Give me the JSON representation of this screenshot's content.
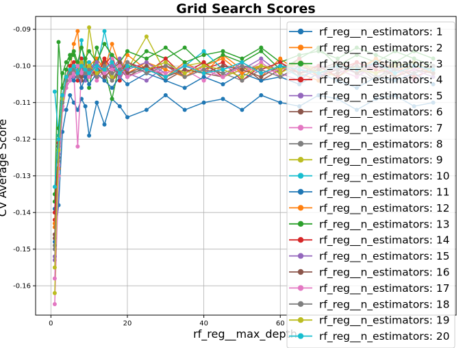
{
  "chart_data": {
    "type": "line",
    "title": "Grid Search Scores",
    "xlabel": "rf_reg__max_depth",
    "ylabel": "CV Average Score",
    "xlim": [
      -4,
      106
    ],
    "ylim": [
      -0.168,
      -0.0865
    ],
    "x_ticks": [
      0,
      20,
      40,
      60
    ],
    "y_ticks": [
      -0.16,
      -0.15,
      -0.14,
      -0.13,
      -0.12,
      -0.11,
      -0.1,
      -0.09
    ],
    "y_tick_labels": [
      "-0.16",
      "-0.15",
      "-0.14",
      "-0.13",
      "-0.12",
      "-0.11",
      "-0.10",
      "-0.09"
    ],
    "grid": true,
    "legend_position": "right",
    "x": [
      1,
      2,
      3,
      4,
      5,
      6,
      7,
      8,
      9,
      10,
      12,
      14,
      16,
      18,
      20,
      25,
      30,
      35,
      40,
      45,
      50,
      55,
      60,
      65,
      70,
      75,
      80,
      85,
      90,
      95,
      100
    ],
    "series": [
      {
        "name": "rf_reg__n_estimators: 1",
        "color": "#1f77b4",
        "values": [
          -0.148,
          -0.138,
          -0.118,
          -0.112,
          -0.108,
          -0.11,
          -0.112,
          -0.109,
          -0.111,
          -0.119,
          -0.11,
          -0.116,
          -0.109,
          -0.111,
          -0.114,
          -0.112,
          -0.108,
          -0.112,
          -0.11,
          -0.109,
          -0.112,
          -0.108,
          -0.11,
          -0.111,
          -0.108,
          -0.109,
          -0.112,
          -0.109,
          -0.108,
          -0.111,
          -0.11
        ]
      },
      {
        "name": "rf_reg__n_estimators: 2",
        "color": "#ff7f0e",
        "values": [
          -0.144,
          -0.128,
          -0.112,
          -0.104,
          -0.101,
          -0.094,
          -0.0905,
          -0.102,
          -0.098,
          -0.103,
          -0.101,
          -0.098,
          -0.104,
          -0.102,
          -0.097,
          -0.101,
          -0.103,
          -0.099,
          -0.102,
          -0.097,
          -0.101,
          -0.103,
          -0.098,
          -0.102,
          -0.104,
          -0.099,
          -0.101,
          -0.098,
          -0.103,
          -0.1,
          -0.102
        ]
      },
      {
        "name": "rf_reg__n_estimators: 3",
        "color": "#2ca02c",
        "values": [
          -0.137,
          -0.0935,
          -0.106,
          -0.101,
          -0.098,
          -0.097,
          -0.1,
          -0.104,
          -0.099,
          -0.106,
          -0.095,
          -0.101,
          -0.109,
          -0.099,
          -0.101,
          -0.096,
          -0.098,
          -0.095,
          -0.1,
          -0.097,
          -0.099,
          -0.096,
          -0.101,
          -0.098,
          -0.095,
          -0.1,
          -0.097,
          -0.099,
          -0.096,
          -0.098,
          -0.1
        ]
      },
      {
        "name": "rf_reg__n_estimators: 4",
        "color": "#d62728",
        "values": [
          -0.142,
          -0.121,
          -0.11,
          -0.103,
          -0.1,
          -0.099,
          -0.104,
          -0.098,
          -0.102,
          -0.099,
          -0.103,
          -0.1,
          -0.097,
          -0.104,
          -0.099,
          -0.102,
          -0.098,
          -0.103,
          -0.101,
          -0.099,
          -0.104,
          -0.1,
          -0.102,
          -0.098,
          -0.103,
          -0.101,
          -0.099,
          -0.102,
          -0.1,
          -0.103,
          -0.101
        ]
      },
      {
        "name": "rf_reg__n_estimators: 5",
        "color": "#9467bd",
        "values": [
          -0.153,
          -0.125,
          -0.109,
          -0.104,
          -0.102,
          -0.103,
          -0.1,
          -0.101,
          -0.104,
          -0.102,
          -0.099,
          -0.103,
          -0.101,
          -0.098,
          -0.102,
          -0.104,
          -0.1,
          -0.102,
          -0.099,
          -0.103,
          -0.101,
          -0.098,
          -0.102,
          -0.104,
          -0.1,
          -0.101,
          -0.103,
          -0.099,
          -0.102,
          -0.101,
          -0.103
        ]
      },
      {
        "name": "rf_reg__n_estimators: 6",
        "color": "#8c564b",
        "values": [
          -0.146,
          -0.122,
          -0.108,
          -0.105,
          -0.103,
          -0.102,
          -0.101,
          -0.104,
          -0.1,
          -0.103,
          -0.102,
          -0.099,
          -0.104,
          -0.101,
          -0.103,
          -0.1,
          -0.104,
          -0.101,
          -0.102,
          -0.103,
          -0.1,
          -0.104,
          -0.101,
          -0.099,
          -0.103,
          -0.102,
          -0.1,
          -0.104,
          -0.101,
          -0.102,
          -0.1
        ]
      },
      {
        "name": "rf_reg__n_estimators: 7",
        "color": "#e377c2",
        "values": [
          -0.165,
          -0.13,
          -0.112,
          -0.106,
          -0.104,
          -0.102,
          -0.122,
          -0.101,
          -0.103,
          -0.1,
          -0.104,
          -0.101,
          -0.098,
          -0.103,
          -0.101,
          -0.099,
          -0.103,
          -0.101,
          -0.104,
          -0.1,
          -0.102,
          -0.099,
          -0.103,
          -0.101,
          -0.1,
          -0.103,
          -0.099,
          -0.102,
          -0.101,
          -0.104,
          -0.1
        ]
      },
      {
        "name": "rf_reg__n_estimators: 8",
        "color": "#7f7f7f",
        "values": [
          -0.15,
          -0.126,
          -0.111,
          -0.105,
          -0.103,
          -0.101,
          -0.102,
          -0.1,
          -0.103,
          -0.101,
          -0.099,
          -0.102,
          -0.104,
          -0.1,
          -0.102,
          -0.101,
          -0.099,
          -0.103,
          -0.1,
          -0.102,
          -0.104,
          -0.101,
          -0.099,
          -0.103,
          -0.101,
          -0.1,
          -0.102,
          -0.104,
          -0.099,
          -0.101,
          -0.102
        ]
      },
      {
        "name": "rf_reg__n_estimators: 9",
        "color": "#bcbd22",
        "values": [
          -0.162,
          -0.124,
          -0.11,
          -0.103,
          -0.101,
          -0.102,
          -0.1,
          -0.099,
          -0.101,
          -0.0895,
          -0.102,
          -0.1,
          -0.103,
          -0.099,
          -0.101,
          -0.092,
          -0.102,
          -0.1,
          -0.099,
          -0.103,
          -0.101,
          -0.1,
          -0.102,
          -0.099,
          -0.101,
          -0.103,
          -0.1,
          -0.102,
          -0.099,
          -0.101,
          -0.1
        ]
      },
      {
        "name": "rf_reg__n_estimators: 10",
        "color": "#17becf",
        "values": [
          -0.107,
          -0.119,
          -0.109,
          -0.104,
          -0.102,
          -0.1,
          -0.101,
          -0.093,
          -0.102,
          -0.099,
          -0.101,
          -0.0905,
          -0.1,
          -0.102,
          -0.099,
          -0.101,
          -0.103,
          -0.1,
          -0.096,
          -0.101,
          -0.099,
          -0.102,
          -0.1,
          -0.103,
          -0.101,
          -0.099,
          -0.102,
          -0.1,
          -0.101,
          -0.099,
          -0.102
        ]
      },
      {
        "name": "rf_reg__n_estimators: 11",
        "color": "#1f77b4",
        "values": [
          -0.139,
          -0.123,
          -0.108,
          -0.105,
          -0.103,
          -0.104,
          -0.102,
          -0.106,
          -0.103,
          -0.105,
          -0.102,
          -0.104,
          -0.106,
          -0.103,
          -0.105,
          -0.102,
          -0.104,
          -0.106,
          -0.103,
          -0.105,
          -0.102,
          -0.104,
          -0.103,
          -0.105,
          -0.102,
          -0.104,
          -0.106,
          -0.103,
          -0.104,
          -0.102,
          -0.105
        ]
      },
      {
        "name": "rf_reg__n_estimators: 12",
        "color": "#ff7f0e",
        "values": [
          -0.143,
          -0.12,
          -0.109,
          -0.104,
          -0.101,
          -0.1,
          -0.103,
          -0.099,
          -0.102,
          -0.1,
          -0.098,
          -0.101,
          -0.094,
          -0.1,
          -0.102,
          -0.099,
          -0.101,
          -0.103,
          -0.1,
          -0.098,
          -0.102,
          -0.1,
          -0.101,
          -0.099,
          -0.103,
          -0.1,
          -0.102,
          -0.098,
          -0.101,
          -0.1,
          -0.102
        ]
      },
      {
        "name": "rf_reg__n_estimators: 13",
        "color": "#2ca02c",
        "values": [
          -0.135,
          -0.117,
          -0.102,
          -0.099,
          -0.097,
          -0.096,
          -0.099,
          -0.095,
          -0.098,
          -0.096,
          -0.099,
          -0.094,
          -0.097,
          -0.099,
          -0.096,
          -0.098,
          -0.095,
          -0.099,
          -0.097,
          -0.096,
          -0.098,
          -0.095,
          -0.099,
          -0.097,
          -0.096,
          -0.098,
          -0.095,
          -0.097,
          -0.099,
          -0.096,
          -0.098
        ]
      },
      {
        "name": "rf_reg__n_estimators: 14",
        "color": "#d62728",
        "values": [
          -0.14,
          -0.121,
          -0.108,
          -0.103,
          -0.101,
          -0.1,
          -0.102,
          -0.099,
          -0.101,
          -0.1,
          -0.103,
          -0.098,
          -0.101,
          -0.102,
          -0.099,
          -0.101,
          -0.1,
          -0.102,
          -0.099,
          -0.103,
          -0.1,
          -0.101,
          -0.099,
          -0.102,
          -0.1,
          -0.103,
          -0.099,
          -0.101,
          -0.102,
          -0.1,
          -0.101
        ]
      },
      {
        "name": "rf_reg__n_estimators: 15",
        "color": "#9467bd",
        "values": [
          -0.152,
          -0.124,
          -0.11,
          -0.104,
          -0.102,
          -0.101,
          -0.103,
          -0.1,
          -0.102,
          -0.101,
          -0.099,
          -0.102,
          -0.1,
          -0.103,
          -0.101,
          -0.099,
          -0.102,
          -0.1,
          -0.101,
          -0.103,
          -0.099,
          -0.102,
          -0.1,
          -0.101,
          -0.103,
          -0.1,
          -0.102,
          -0.099,
          -0.101,
          -0.102,
          -0.1
        ]
      },
      {
        "name": "rf_reg__n_estimators: 16",
        "color": "#8c564b",
        "values": [
          -0.147,
          -0.122,
          -0.109,
          -0.104,
          -0.102,
          -0.101,
          -0.1,
          -0.103,
          -0.101,
          -0.102,
          -0.1,
          -0.103,
          -0.101,
          -0.099,
          -0.102,
          -0.1,
          -0.103,
          -0.101,
          -0.102,
          -0.1,
          -0.101,
          -0.103,
          -0.1,
          -0.102,
          -0.101,
          -0.099,
          -0.102,
          -0.1,
          -0.103,
          -0.101,
          -0.102
        ]
      },
      {
        "name": "rf_reg__n_estimators: 17",
        "color": "#e377c2",
        "values": [
          -0.158,
          -0.127,
          -0.111,
          -0.105,
          -0.103,
          -0.102,
          -0.1,
          -0.102,
          -0.101,
          -0.103,
          -0.1,
          -0.102,
          -0.101,
          -0.1,
          -0.103,
          -0.101,
          -0.102,
          -0.1,
          -0.101,
          -0.103,
          -0.1,
          -0.102,
          -0.101,
          -0.1,
          -0.102,
          -0.101,
          -0.103,
          -0.1,
          -0.102,
          -0.101,
          -0.1
        ]
      },
      {
        "name": "rf_reg__n_estimators: 18",
        "color": "#7f7f7f",
        "values": [
          -0.149,
          -0.125,
          -0.11,
          -0.104,
          -0.102,
          -0.101,
          -0.103,
          -0.1,
          -0.102,
          -0.101,
          -0.103,
          -0.1,
          -0.102,
          -0.101,
          -0.099,
          -0.102,
          -0.1,
          -0.103,
          -0.101,
          -0.102,
          -0.1,
          -0.101,
          -0.103,
          -0.1,
          -0.102,
          -0.101,
          -0.1,
          -0.103,
          -0.101,
          -0.102,
          -0.1
        ]
      },
      {
        "name": "rf_reg__n_estimators: 19",
        "color": "#bcbd22",
        "values": [
          -0.155,
          -0.123,
          -0.109,
          -0.103,
          -0.101,
          -0.1,
          -0.102,
          -0.099,
          -0.101,
          -0.1,
          -0.102,
          -0.101,
          -0.099,
          -0.102,
          -0.1,
          -0.101,
          -0.099,
          -0.102,
          -0.1,
          -0.101,
          -0.103,
          -0.1,
          -0.101,
          -0.099,
          -0.102,
          -0.1,
          -0.101,
          -0.102,
          -0.1,
          -0.099,
          -0.101
        ]
      },
      {
        "name": "rf_reg__n_estimators: 20",
        "color": "#17becf",
        "values": [
          -0.133,
          -0.12,
          -0.108,
          -0.103,
          -0.101,
          -0.1,
          -0.102,
          -0.1,
          -0.101,
          -0.102,
          -0.1,
          -0.101,
          -0.099,
          -0.102,
          -0.1,
          -0.101,
          -0.103,
          -0.1,
          -0.102,
          -0.101,
          -0.099,
          -0.102,
          -0.1,
          -0.101,
          -0.102,
          -0.1,
          -0.101,
          -0.099,
          -0.102,
          -0.1,
          -0.101
        ]
      }
    ]
  }
}
